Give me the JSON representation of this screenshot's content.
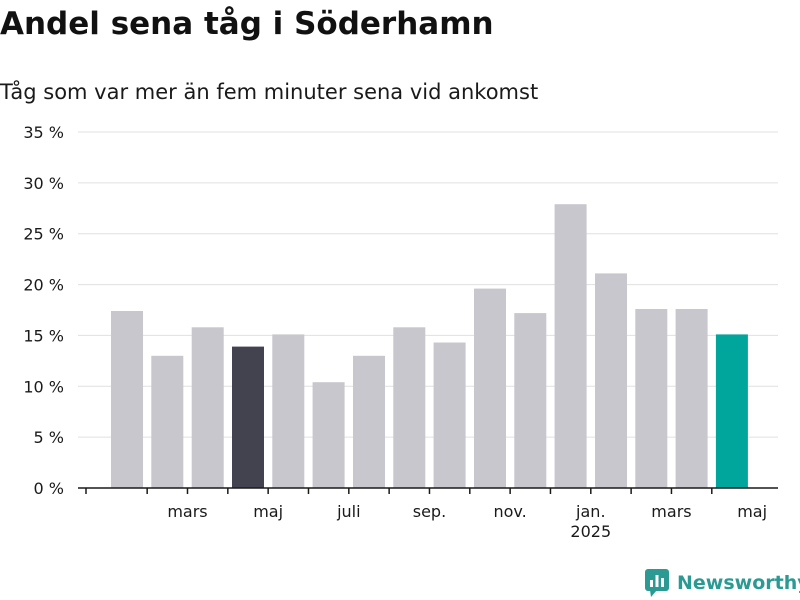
{
  "title": "Andel sena tåg i Söderhamn",
  "subtitle": "Tåg som var mer än fem minuter sena vid ankomst",
  "brand": {
    "name": "Newsworthy",
    "icon": "newsworthy-logo-icon"
  },
  "colors": {
    "bar": "#c8c7cd",
    "highlight_dark": "#43424f",
    "highlight_accent": "#00a59b",
    "grid": "#e0e0e0",
    "axis": "#1a1a1a",
    "brand": "#2a9a93"
  },
  "chart_data": {
    "type": "bar",
    "title": "Andel sena tåg i Söderhamn",
    "subtitle": "Tåg som var mer än fem minuter sena vid ankomst",
    "xlabel": "",
    "ylabel": "",
    "ylim": [
      0,
      35
    ],
    "yticks": [
      0,
      5,
      10,
      15,
      20,
      25,
      30,
      35
    ],
    "ytick_labels": [
      "0 %",
      "5 %",
      "10 %",
      "15 %",
      "20 %",
      "25 %",
      "30 %",
      "35 %"
    ],
    "grid": true,
    "legend": "none",
    "categories": [
      "2024-02",
      "2024-03",
      "2024-04",
      "2024-05",
      "2024-06",
      "2024-07",
      "2024-08",
      "2024-09",
      "2024-10",
      "2024-11",
      "2024-12",
      "2025-01",
      "2025-02",
      "2025-03",
      "2025-04",
      "2025-05"
    ],
    "values": [
      17.4,
      13.0,
      15.8,
      13.9,
      15.1,
      10.4,
      13.0,
      15.8,
      14.3,
      19.6,
      17.2,
      27.9,
      21.1,
      17.6,
      17.6,
      15.1
    ],
    "highlight": {
      "2024-05": "dark",
      "2025-05": "accent"
    },
    "xtick_labels": [
      {
        "category": "2024-03",
        "label": "mars"
      },
      {
        "category": "2024-05",
        "label": "maj"
      },
      {
        "category": "2024-07",
        "label": "juli"
      },
      {
        "category": "2024-09",
        "label": "sep."
      },
      {
        "category": "2024-11",
        "label": "nov."
      },
      {
        "category": "2025-01",
        "label": "jan.",
        "sublabel": "2025"
      },
      {
        "category": "2025-03",
        "label": "mars"
      },
      {
        "category": "2025-05",
        "label": "maj"
      }
    ]
  }
}
